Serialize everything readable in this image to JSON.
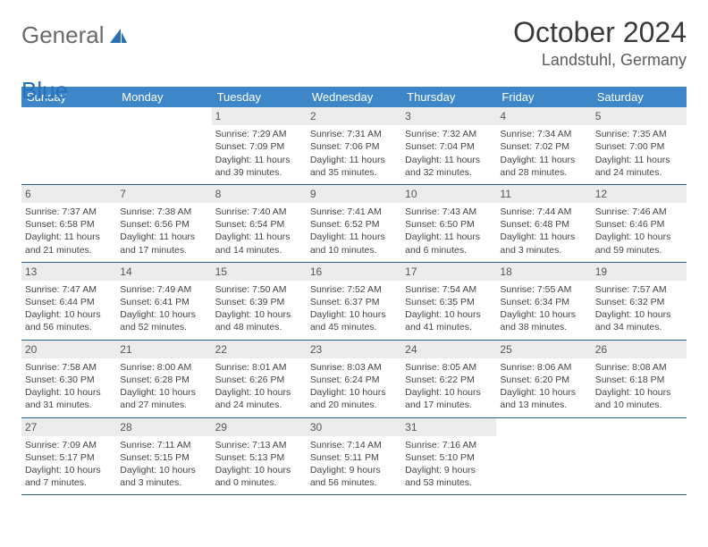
{
  "logo": {
    "text1": "General",
    "text2": "Blue"
  },
  "title": {
    "month": "October 2024",
    "location": "Landstuhl, Germany"
  },
  "colors": {
    "header_bg": "#3d87c9",
    "daynum_bg": "#ececec",
    "week_border": "#2a5d8f",
    "logo_gray": "#6a6a6a",
    "logo_blue": "#2a70b8"
  },
  "dow": [
    "Sunday",
    "Monday",
    "Tuesday",
    "Wednesday",
    "Thursday",
    "Friday",
    "Saturday"
  ],
  "weeks": [
    [
      {
        "n": "",
        "sr": "",
        "ss": "",
        "dl1": "",
        "dl2": ""
      },
      {
        "n": "",
        "sr": "",
        "ss": "",
        "dl1": "",
        "dl2": ""
      },
      {
        "n": "1",
        "sr": "Sunrise: 7:29 AM",
        "ss": "Sunset: 7:09 PM",
        "dl1": "Daylight: 11 hours",
        "dl2": "and 39 minutes."
      },
      {
        "n": "2",
        "sr": "Sunrise: 7:31 AM",
        "ss": "Sunset: 7:06 PM",
        "dl1": "Daylight: 11 hours",
        "dl2": "and 35 minutes."
      },
      {
        "n": "3",
        "sr": "Sunrise: 7:32 AM",
        "ss": "Sunset: 7:04 PM",
        "dl1": "Daylight: 11 hours",
        "dl2": "and 32 minutes."
      },
      {
        "n": "4",
        "sr": "Sunrise: 7:34 AM",
        "ss": "Sunset: 7:02 PM",
        "dl1": "Daylight: 11 hours",
        "dl2": "and 28 minutes."
      },
      {
        "n": "5",
        "sr": "Sunrise: 7:35 AM",
        "ss": "Sunset: 7:00 PM",
        "dl1": "Daylight: 11 hours",
        "dl2": "and 24 minutes."
      }
    ],
    [
      {
        "n": "6",
        "sr": "Sunrise: 7:37 AM",
        "ss": "Sunset: 6:58 PM",
        "dl1": "Daylight: 11 hours",
        "dl2": "and 21 minutes."
      },
      {
        "n": "7",
        "sr": "Sunrise: 7:38 AM",
        "ss": "Sunset: 6:56 PM",
        "dl1": "Daylight: 11 hours",
        "dl2": "and 17 minutes."
      },
      {
        "n": "8",
        "sr": "Sunrise: 7:40 AM",
        "ss": "Sunset: 6:54 PM",
        "dl1": "Daylight: 11 hours",
        "dl2": "and 14 minutes."
      },
      {
        "n": "9",
        "sr": "Sunrise: 7:41 AM",
        "ss": "Sunset: 6:52 PM",
        "dl1": "Daylight: 11 hours",
        "dl2": "and 10 minutes."
      },
      {
        "n": "10",
        "sr": "Sunrise: 7:43 AM",
        "ss": "Sunset: 6:50 PM",
        "dl1": "Daylight: 11 hours",
        "dl2": "and 6 minutes."
      },
      {
        "n": "11",
        "sr": "Sunrise: 7:44 AM",
        "ss": "Sunset: 6:48 PM",
        "dl1": "Daylight: 11 hours",
        "dl2": "and 3 minutes."
      },
      {
        "n": "12",
        "sr": "Sunrise: 7:46 AM",
        "ss": "Sunset: 6:46 PM",
        "dl1": "Daylight: 10 hours",
        "dl2": "and 59 minutes."
      }
    ],
    [
      {
        "n": "13",
        "sr": "Sunrise: 7:47 AM",
        "ss": "Sunset: 6:44 PM",
        "dl1": "Daylight: 10 hours",
        "dl2": "and 56 minutes."
      },
      {
        "n": "14",
        "sr": "Sunrise: 7:49 AM",
        "ss": "Sunset: 6:41 PM",
        "dl1": "Daylight: 10 hours",
        "dl2": "and 52 minutes."
      },
      {
        "n": "15",
        "sr": "Sunrise: 7:50 AM",
        "ss": "Sunset: 6:39 PM",
        "dl1": "Daylight: 10 hours",
        "dl2": "and 48 minutes."
      },
      {
        "n": "16",
        "sr": "Sunrise: 7:52 AM",
        "ss": "Sunset: 6:37 PM",
        "dl1": "Daylight: 10 hours",
        "dl2": "and 45 minutes."
      },
      {
        "n": "17",
        "sr": "Sunrise: 7:54 AM",
        "ss": "Sunset: 6:35 PM",
        "dl1": "Daylight: 10 hours",
        "dl2": "and 41 minutes."
      },
      {
        "n": "18",
        "sr": "Sunrise: 7:55 AM",
        "ss": "Sunset: 6:34 PM",
        "dl1": "Daylight: 10 hours",
        "dl2": "and 38 minutes."
      },
      {
        "n": "19",
        "sr": "Sunrise: 7:57 AM",
        "ss": "Sunset: 6:32 PM",
        "dl1": "Daylight: 10 hours",
        "dl2": "and 34 minutes."
      }
    ],
    [
      {
        "n": "20",
        "sr": "Sunrise: 7:58 AM",
        "ss": "Sunset: 6:30 PM",
        "dl1": "Daylight: 10 hours",
        "dl2": "and 31 minutes."
      },
      {
        "n": "21",
        "sr": "Sunrise: 8:00 AM",
        "ss": "Sunset: 6:28 PM",
        "dl1": "Daylight: 10 hours",
        "dl2": "and 27 minutes."
      },
      {
        "n": "22",
        "sr": "Sunrise: 8:01 AM",
        "ss": "Sunset: 6:26 PM",
        "dl1": "Daylight: 10 hours",
        "dl2": "and 24 minutes."
      },
      {
        "n": "23",
        "sr": "Sunrise: 8:03 AM",
        "ss": "Sunset: 6:24 PM",
        "dl1": "Daylight: 10 hours",
        "dl2": "and 20 minutes."
      },
      {
        "n": "24",
        "sr": "Sunrise: 8:05 AM",
        "ss": "Sunset: 6:22 PM",
        "dl1": "Daylight: 10 hours",
        "dl2": "and 17 minutes."
      },
      {
        "n": "25",
        "sr": "Sunrise: 8:06 AM",
        "ss": "Sunset: 6:20 PM",
        "dl1": "Daylight: 10 hours",
        "dl2": "and 13 minutes."
      },
      {
        "n": "26",
        "sr": "Sunrise: 8:08 AM",
        "ss": "Sunset: 6:18 PM",
        "dl1": "Daylight: 10 hours",
        "dl2": "and 10 minutes."
      }
    ],
    [
      {
        "n": "27",
        "sr": "Sunrise: 7:09 AM",
        "ss": "Sunset: 5:17 PM",
        "dl1": "Daylight: 10 hours",
        "dl2": "and 7 minutes."
      },
      {
        "n": "28",
        "sr": "Sunrise: 7:11 AM",
        "ss": "Sunset: 5:15 PM",
        "dl1": "Daylight: 10 hours",
        "dl2": "and 3 minutes."
      },
      {
        "n": "29",
        "sr": "Sunrise: 7:13 AM",
        "ss": "Sunset: 5:13 PM",
        "dl1": "Daylight: 10 hours",
        "dl2": "and 0 minutes."
      },
      {
        "n": "30",
        "sr": "Sunrise: 7:14 AM",
        "ss": "Sunset: 5:11 PM",
        "dl1": "Daylight: 9 hours",
        "dl2": "and 56 minutes."
      },
      {
        "n": "31",
        "sr": "Sunrise: 7:16 AM",
        "ss": "Sunset: 5:10 PM",
        "dl1": "Daylight: 9 hours",
        "dl2": "and 53 minutes."
      },
      {
        "n": "",
        "sr": "",
        "ss": "",
        "dl1": "",
        "dl2": ""
      },
      {
        "n": "",
        "sr": "",
        "ss": "",
        "dl1": "",
        "dl2": ""
      }
    ]
  ]
}
